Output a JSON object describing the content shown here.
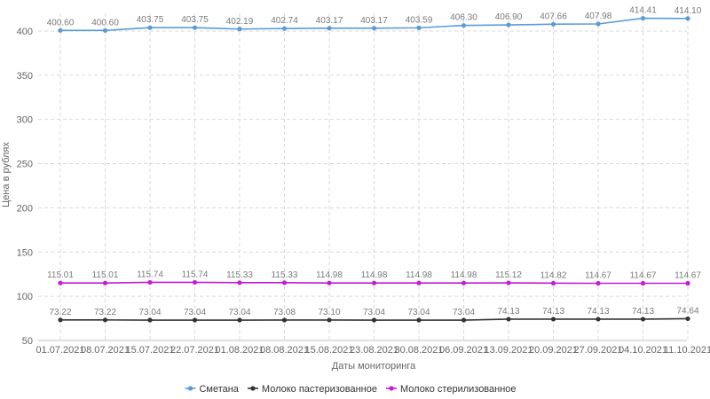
{
  "chart_data": {
    "type": "line",
    "title": "",
    "xlabel": "Даты мониторинга",
    "ylabel": "Цена в рублях",
    "ylim": [
      50,
      420
    ],
    "yticks": [
      50,
      100,
      150,
      200,
      250,
      300,
      350,
      400
    ],
    "grid": true,
    "legend_position": "bottom-center",
    "categories": [
      "01.07.2021",
      "08.07.2021",
      "15.07.2021",
      "22.07.2021",
      "01.08.2021",
      "08.08.2021",
      "15.08.2021",
      "23.08.2021",
      "30.08.2021",
      "06.09.2021",
      "13.09.2021",
      "20.09.2021",
      "27.09.2021",
      "04.10.2021",
      "11.10.2021"
    ],
    "series": [
      {
        "name": "Сметана",
        "color": "#5b9bd5",
        "values": [
          400.6,
          400.6,
          403.75,
          403.75,
          402.19,
          402.74,
          403.17,
          403.17,
          403.59,
          406.3,
          406.9,
          407.66,
          407.98,
          414.41,
          414.1
        ],
        "labels": [
          "400.60",
          "400.60",
          "403.75",
          "403.75",
          "402.19",
          "402.74",
          "403.17",
          "403.17",
          "403.59",
          "406.30",
          "406.90",
          "407.66",
          "407.98",
          "414.41",
          "414.10"
        ]
      },
      {
        "name": "Молоко пастеризованное",
        "color": "#333333",
        "values": [
          73.22,
          73.22,
          73.04,
          73.04,
          73.04,
          73.08,
          73.1,
          73.04,
          73.04,
          73.04,
          74.13,
          74.13,
          74.13,
          74.13,
          74.64
        ],
        "labels": [
          "73.22",
          "73.22",
          "73.04",
          "73.04",
          "73.04",
          "73.08",
          "73.10",
          "73.04",
          "73.04",
          "73.04",
          "74.13",
          "74.13",
          "74.13",
          "74.13",
          "74.64"
        ]
      },
      {
        "name": "Молоко стерилизованное",
        "color": "#c51bd8",
        "values": [
          115.01,
          115.01,
          115.74,
          115.74,
          115.33,
          115.33,
          114.98,
          114.98,
          114.98,
          114.98,
          115.12,
          114.82,
          114.67,
          114.67,
          114.67
        ],
        "labels": [
          "115.01",
          "115.01",
          "115.74",
          "115.74",
          "115.33",
          "115.33",
          "114.98",
          "114.98",
          "114.98",
          "114.98",
          "115.12",
          "114.82",
          "114.67",
          "114.67",
          "114.67"
        ]
      }
    ]
  }
}
